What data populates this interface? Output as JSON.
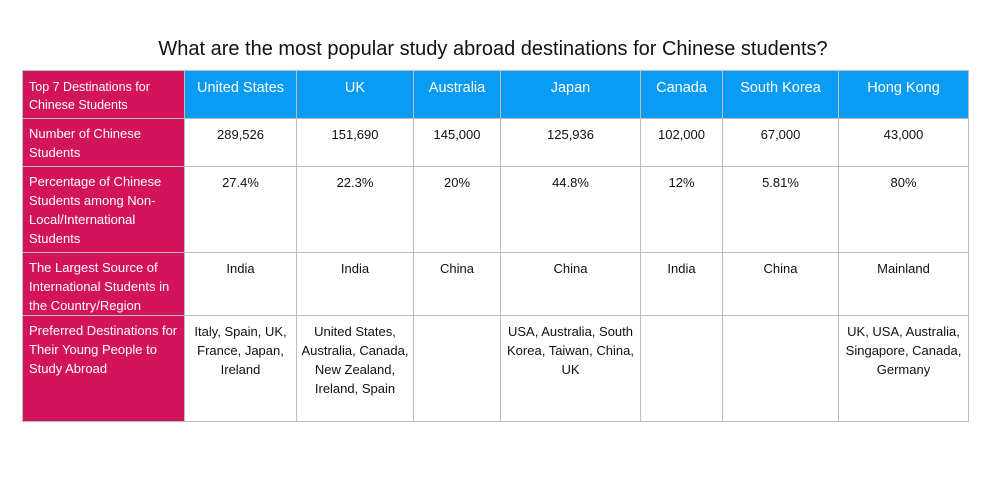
{
  "title": "What are the most popular study abroad destinations for Chinese students?",
  "chart_data": {
    "type": "table",
    "title": "What are the most popular study abroad destinations for Chinese students?",
    "corner_label": "Top 7 Destinations for Chinese Students",
    "columns": [
      "United States",
      "UK",
      "Australia",
      "Japan",
      "Canada",
      "South Korea",
      "Hong Kong"
    ],
    "rows": [
      {
        "label": "Number of Chinese Students",
        "values": [
          "289,526",
          "151,690",
          "145,000",
          "125,936",
          "102,000",
          "67,000",
          "43,000"
        ]
      },
      {
        "label": "Percentage of Chinese Students among Non-Local/International Students",
        "values": [
          "27.4%",
          "22.3%",
          "20%",
          "44.8%",
          "12%",
          "5.81%",
          "80%"
        ]
      },
      {
        "label": "The Largest Source of International Students in the Country/Region",
        "values": [
          "India",
          "India",
          "China",
          "China",
          "India",
          "China",
          "Mainland"
        ]
      },
      {
        "label": "Preferred Destinations for Their Young People to Study Abroad",
        "values": [
          "Italy, Spain, UK, France, Japan, Ireland",
          "United States, Australia, Canada, New Zealand, Ireland, Spain",
          "",
          "USA, Australia, South Korea, Taiwan, China, UK",
          "",
          "",
          "UK, USA, Australia, Singapore, Canada, Germany"
        ]
      }
    ],
    "colors": {
      "header_row": "#0a9cf5",
      "header_column": "#d4145a",
      "grid_line": "#bdbdbd"
    }
  }
}
